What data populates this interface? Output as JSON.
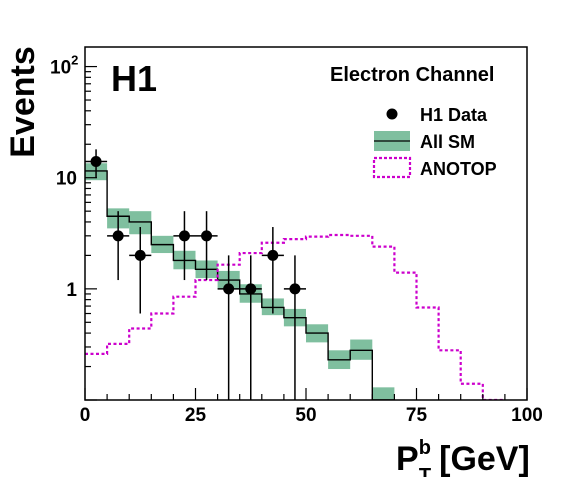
{
  "chart_data": {
    "type": "histogram",
    "ylabel": "Events",
    "xlabel": {
      "main": "P",
      "sup": "b",
      "sub": "T",
      "unit": "[GeV]"
    },
    "experiment_label": "H1",
    "channel_label": "Electron Channel",
    "x_range": [
      0,
      100
    ],
    "y_range": [
      0.1,
      150
    ],
    "y_scale": "log",
    "x_ticks": [
      "0",
      "25",
      "50",
      "75",
      "100"
    ],
    "x_tick_values": [
      0,
      25,
      50,
      75,
      100
    ],
    "y_ticks": [
      {
        "value": 100,
        "base": "10",
        "exp": "2"
      },
      {
        "value": 10,
        "base": "10",
        "exp": ""
      },
      {
        "value": 1,
        "base": "1",
        "exp": ""
      }
    ],
    "bin_edges": [
      0,
      5,
      10,
      15,
      20,
      25,
      30,
      35,
      40,
      45,
      50,
      55,
      60,
      65,
      70,
      75,
      80,
      85,
      90,
      95,
      100
    ],
    "legend": [
      {
        "key": "data",
        "label": "H1 Data"
      },
      {
        "key": "sm",
        "label": "All SM"
      },
      {
        "key": "signal",
        "label": "ANOTOP"
      }
    ],
    "series": [
      {
        "name": "H1 Data",
        "style": "points",
        "color": "#000000",
        "x": [
          2.5,
          7.5,
          12.5,
          22.5,
          27.5,
          32.5,
          37.5,
          42.5,
          47.5
        ],
        "y": [
          14,
          3,
          2,
          3,
          3,
          1,
          1,
          2,
          1
        ],
        "y_err_low": [
          4,
          1.8,
          1.4,
          1.8,
          1.8,
          0.9,
          0.9,
          1.4,
          0.9
        ],
        "y_err_high": [
          4,
          2.0,
          1.6,
          2.0,
          2.0,
          1.0,
          1.0,
          1.6,
          1.0
        ]
      },
      {
        "name": "All SM",
        "style": "step-band",
        "color": "#000000",
        "band_color": "#7fbf9f",
        "values": [
          11.5,
          4.5,
          4.0,
          2.5,
          1.8,
          1.5,
          1.2,
          0.9,
          0.68,
          0.55,
          0.4,
          0.23,
          0.28,
          0.1,
          0.09,
          0.09,
          0.09,
          0.09,
          0.09,
          0.09
        ],
        "band_low": [
          9.5,
          3.5,
          3.1,
          2.1,
          1.5,
          1.25,
          1.0,
          0.75,
          0.58,
          0.46,
          0.33,
          0.19,
          0.23,
          0.1,
          0.1,
          0.1,
          0.1,
          0.1,
          0.1,
          0.1
        ],
        "band_high": [
          13.5,
          5.3,
          5.0,
          3.0,
          2.2,
          1.8,
          1.45,
          1.1,
          0.82,
          0.66,
          0.48,
          0.28,
          0.35,
          0.13,
          0.1,
          0.1,
          0.1,
          0.1,
          0.1,
          0.1
        ]
      },
      {
        "name": "ANOTOP",
        "style": "dashed-step",
        "color": "#cc00cc",
        "values": [
          0.26,
          0.32,
          0.44,
          0.6,
          0.85,
          1.2,
          1.65,
          2.1,
          2.6,
          2.8,
          2.95,
          3.05,
          3.0,
          2.4,
          1.4,
          0.68,
          0.28,
          0.14,
          0.1,
          0.09
        ]
      }
    ]
  }
}
